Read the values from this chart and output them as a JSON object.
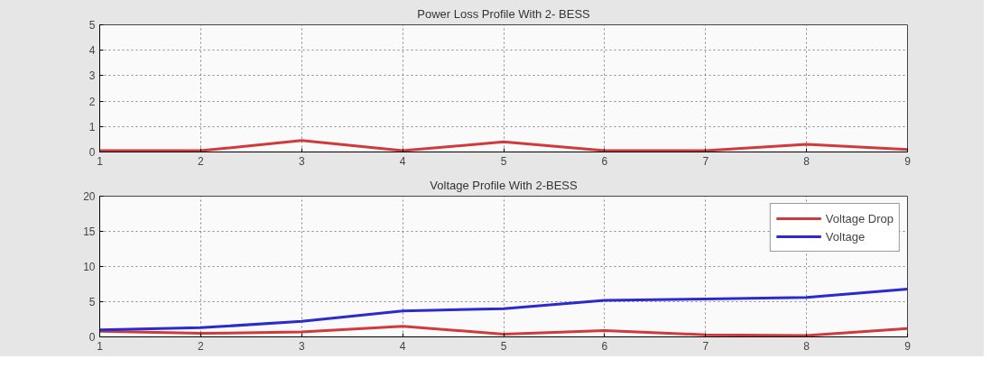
{
  "chart_data": [
    {
      "type": "line",
      "title": "Power Loss Profile With 2- BESS",
      "x": [
        1,
        2,
        3,
        4,
        5,
        6,
        7,
        8,
        9
      ],
      "series": [
        {
          "color": "#d03a3a",
          "values": [
            0.05,
            0.05,
            0.45,
            0.05,
            0.4,
            0.05,
            0.05,
            0.3,
            0.1
          ]
        }
      ],
      "xlim": [
        1,
        9
      ],
      "xticks": [
        1,
        2,
        3,
        4,
        5,
        6,
        7,
        8,
        9
      ],
      "ylim": [
        0,
        5
      ],
      "yticks": [
        0,
        1,
        2,
        3,
        4,
        5
      ],
      "grid": true,
      "legend": false,
      "line_style": "solid",
      "marker": "none"
    },
    {
      "type": "line",
      "title": "Voltage Profile With 2-BESS",
      "x": [
        1,
        2,
        3,
        4,
        5,
        6,
        7,
        8,
        9
      ],
      "series": [
        {
          "name": "Voltage Drop",
          "color": "#d03a3a",
          "values": [
            0.8,
            0.5,
            0.7,
            1.5,
            0.4,
            0.9,
            0.3,
            0.2,
            1.2
          ]
        },
        {
          "name": "Voltage",
          "color": "#2a2ad0",
          "values": [
            1.0,
            1.3,
            2.2,
            3.7,
            4.0,
            5.2,
            5.4,
            5.6,
            6.8
          ]
        }
      ],
      "xlim": [
        1,
        9
      ],
      "xticks": [
        1,
        2,
        3,
        4,
        5,
        6,
        7,
        8,
        9
      ],
      "ylim": [
        0,
        20
      ],
      "yticks": [
        0,
        5,
        10,
        15,
        20
      ],
      "grid": true,
      "legend": "top right",
      "line_style": "solid",
      "marker": "none"
    }
  ]
}
